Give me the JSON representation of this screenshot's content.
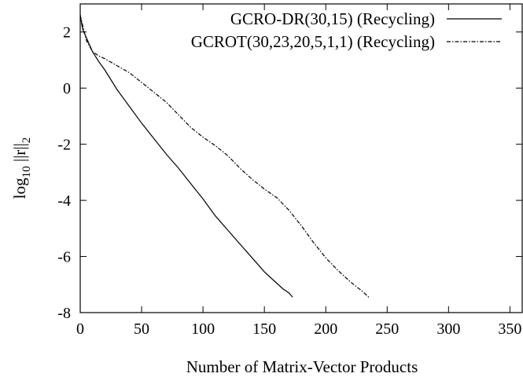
{
  "chart_data": {
    "type": "line",
    "xlabel": "Number of Matrix-Vector Products",
    "ylabel": {
      "main": "log",
      "sub": "10",
      "rest": " ||r||",
      "rest_sub": "2"
    },
    "xlim": [
      0,
      360
    ],
    "ylim": [
      -8,
      3
    ],
    "xticks": [
      "0",
      "50",
      "100",
      "150",
      "200",
      "250",
      "300",
      "350"
    ],
    "xtick_values": [
      0,
      50,
      100,
      150,
      200,
      250,
      300,
      350
    ],
    "yticks": [
      "2",
      "0",
      "-2",
      "-4",
      "-6",
      "-8"
    ],
    "ytick_values": [
      2,
      0,
      -2,
      -4,
      -6,
      -8
    ],
    "grid": false,
    "legend_position": "top-right",
    "series": [
      {
        "name": "GCRO-DR(30,15) (Recycling)",
        "style": "solid",
        "color": "#000000",
        "x": [
          0,
          2,
          5,
          10,
          15,
          20,
          30,
          40,
          50,
          60,
          70,
          80,
          90,
          100,
          110,
          120,
          130,
          140,
          150,
          160,
          165,
          170,
          173
        ],
        "y": [
          2.6,
          2.1,
          1.8,
          1.3,
          0.95,
          0.65,
          -0.05,
          -0.65,
          -1.25,
          -1.8,
          -2.35,
          -2.85,
          -3.4,
          -3.95,
          -4.55,
          -5.05,
          -5.55,
          -6.05,
          -6.55,
          -6.95,
          -7.15,
          -7.3,
          -7.45
        ]
      },
      {
        "name": "GCROT(30,23,20,5,1,1) (Recycling)",
        "style": "dash-dot",
        "color": "#000000",
        "x": [
          0,
          5,
          10,
          15,
          20,
          30,
          40,
          50,
          60,
          70,
          80,
          90,
          100,
          110,
          120,
          130,
          140,
          150,
          160,
          170,
          180,
          190,
          200,
          210,
          220,
          230,
          235
        ],
        "y": [
          2.6,
          1.7,
          1.3,
          1.15,
          1.05,
          0.8,
          0.55,
          0.2,
          -0.15,
          -0.5,
          -0.95,
          -1.4,
          -1.75,
          -2.05,
          -2.4,
          -2.85,
          -3.25,
          -3.6,
          -3.9,
          -4.35,
          -4.9,
          -5.5,
          -6.05,
          -6.5,
          -6.9,
          -7.25,
          -7.45
        ]
      }
    ]
  }
}
